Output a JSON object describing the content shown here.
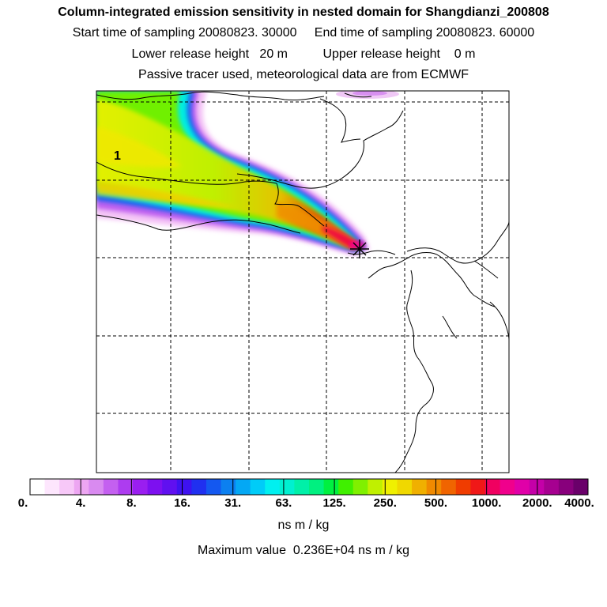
{
  "header": {
    "title": "Column-integrated emission sensitivity in nested domain for Shangdianzi_200808",
    "sampling": "Start time of sampling 20080823. 30000     End time of sampling 20080823. 60000",
    "release": "Lower release height   20 m          Upper release height    0 m",
    "info": "Passive tracer used, meteorological data are from ECMWF"
  },
  "map": {
    "plume_label": "1",
    "receptor": "Shangdianzi"
  },
  "colorbar": {
    "ticks": [
      "0.",
      "4.",
      "8.",
      "16.",
      "31.",
      "63.",
      "125.",
      "250.",
      "500.",
      "1000.",
      "2000.",
      "4000."
    ],
    "colors": [
      "#ffffff",
      "#fde6fd",
      "#f7c8f8",
      "#eda6f2",
      "#d98af0",
      "#c460f0",
      "#ad3cf0",
      "#9a1ef0",
      "#7d10f0",
      "#6010f0",
      "#3e12f0",
      "#2030f0",
      "#1458f0",
      "#0c80f0",
      "#04a8f4",
      "#00ccf8",
      "#00f0f0",
      "#00f0d0",
      "#00f0a8",
      "#00f080",
      "#00f040",
      "#40f000",
      "#80f000",
      "#c0f000",
      "#f0f000",
      "#f0d800",
      "#f0b000",
      "#f08a00",
      "#f06400",
      "#f03c00",
      "#f01818",
      "#f00060",
      "#f0008c",
      "#e000a8",
      "#c400a8",
      "#a60090",
      "#88007c",
      "#6a006a"
    ],
    "units": "ns m / kg",
    "max_value": "Maximum value  0.236E+04 ns m / kg"
  }
}
